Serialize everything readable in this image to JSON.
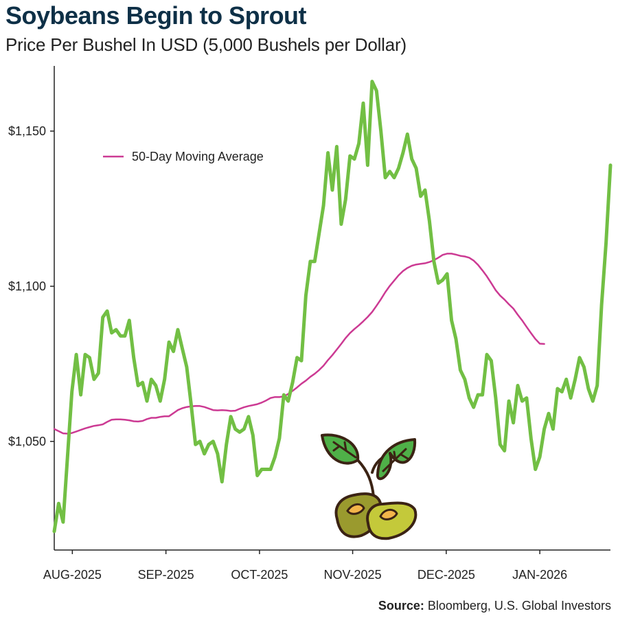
{
  "header": {
    "title": "Soybeans Begin to Sprout",
    "subtitle": "Price Per Bushel In USD (5,000 Bushels per Dollar)"
  },
  "footer": {
    "source_label": "Source:",
    "source_text": "Bloomberg, U.S. Global Investors"
  },
  "colors": {
    "price_line": "#72bf44",
    "moving_average": "#cc3a93",
    "title": "#0e3047",
    "axis": "#222222",
    "leaf": "#4fb048",
    "bean_left": "#9a9a2e",
    "bean_right": "#c4c93a",
    "outline": "#3b2314"
  },
  "illustration": {
    "icon": "soybean-sprout-icon"
  },
  "chart_data": {
    "type": "line",
    "title": "Soybeans Begin to Sprout",
    "subtitle": "Price Per Bushel In USD (5,000 Bushels per Dollar)",
    "xlabel": "",
    "ylabel": "",
    "ylim": [
      1015,
      1171
    ],
    "y_ticks": [
      1050,
      1100,
      1150
    ],
    "y_tick_labels": [
      "$1,050",
      "$1,100",
      "$1,150"
    ],
    "x_ticks": [
      {
        "label": "AUG-2025",
        "index": 4.1
      },
      {
        "label": "SEP-2025",
        "index": 25.3
      },
      {
        "label": "OCT-2025",
        "index": 46.5
      },
      {
        "label": "NOV-2025",
        "index": 67.6
      },
      {
        "label": "DEC-2025",
        "index": 88.8
      },
      {
        "label": "JAN-2026",
        "index": 110.0
      }
    ],
    "legend": {
      "entries": [
        "50-Day Moving Average"
      ],
      "placement": "top-left"
    },
    "grid": false,
    "series": [
      {
        "key": "price",
        "values": [
          1021,
          1030,
          1024,
          1045,
          1066,
          1078,
          1065,
          1078,
          1077,
          1070,
          1072,
          1090,
          1092,
          1085,
          1086,
          1084,
          1084,
          1089,
          1077,
          1068,
          1069,
          1063,
          1070,
          1068,
          1063,
          1070,
          1082,
          1079,
          1086,
          1080,
          1074,
          1062,
          1049,
          1050,
          1046,
          1049,
          1050,
          1046,
          1037,
          1049,
          1058,
          1054,
          1053,
          1054,
          1058,
          1052,
          1039,
          1041,
          1041,
          1041,
          1045,
          1051,
          1065,
          1063,
          1069,
          1077,
          1076,
          1097,
          1108,
          1108,
          1117,
          1126,
          1143,
          1131,
          1145,
          1120,
          1128,
          1142,
          1141,
          1146,
          1159,
          1139,
          1166,
          1163,
          1150,
          1135,
          1137,
          1135,
          1138,
          1143,
          1149,
          1141,
          1138,
          1129,
          1131,
          1121,
          1108,
          1101,
          1102,
          1104,
          1089,
          1083,
          1073,
          1070,
          1064,
          1061,
          1065,
          1065,
          1078,
          1076,
          1064,
          1049,
          1047,
          1063,
          1056,
          1068,
          1063,
          1064,
          1051,
          1041,
          1045,
          1054,
          1059,
          1054,
          1067,
          1066,
          1070,
          1064,
          1070,
          1077,
          1074,
          1067,
          1063,
          1068,
          1094,
          1114,
          1139
        ]
      },
      {
        "key": "moving_average",
        "name": "50-Day Moving Average",
        "values": [
          1054.0,
          1053.3,
          1052.6,
          1052.5,
          1052.7,
          1053.2,
          1053.7,
          1054.2,
          1054.6,
          1055.0,
          1055.2,
          1055.5,
          1056.3,
          1057.0,
          1057.1,
          1057.1,
          1057.0,
          1056.8,
          1056.5,
          1056.4,
          1056.6,
          1057.2,
          1057.6,
          1057.6,
          1057.9,
          1058.1,
          1058.1,
          1059.1,
          1060.1,
          1060.7,
          1061.1,
          1061.3,
          1061.4,
          1061.4,
          1061.1,
          1060.6,
          1060.1,
          1060.0,
          1060.1,
          1060.0,
          1059.8,
          1059.9,
          1060.5,
          1061.0,
          1061.4,
          1061.7,
          1062.0,
          1062.5,
          1063.2,
          1064.0,
          1064.3,
          1064.3,
          1064.5,
          1065.3,
          1066.3,
          1067.4,
          1068.6,
          1069.6,
          1070.8,
          1071.8,
          1073.0,
          1074.4,
          1076.2,
          1077.8,
          1079.6,
          1081.4,
          1083.3,
          1084.9,
          1086.2,
          1087.4,
          1088.7,
          1090.1,
          1091.7,
          1093.7,
          1095.8,
          1098.1,
          1100.1,
          1101.8,
          1103.5,
          1104.9,
          1105.9,
          1106.6,
          1107.0,
          1107.2,
          1107.4,
          1107.8,
          1108.4,
          1109.2,
          1110.1,
          1110.5,
          1110.5,
          1110.2,
          1109.8,
          1109.6,
          1109.2,
          1108.3,
          1106.9,
          1105.1,
          1103.2,
          1101.0,
          1098.7,
          1097.0,
          1095.7,
          1094.2,
          1092.8,
          1090.8,
          1089.0,
          1086.9,
          1084.9,
          1083.0,
          1081.5,
          1081.4
        ]
      }
    ]
  }
}
